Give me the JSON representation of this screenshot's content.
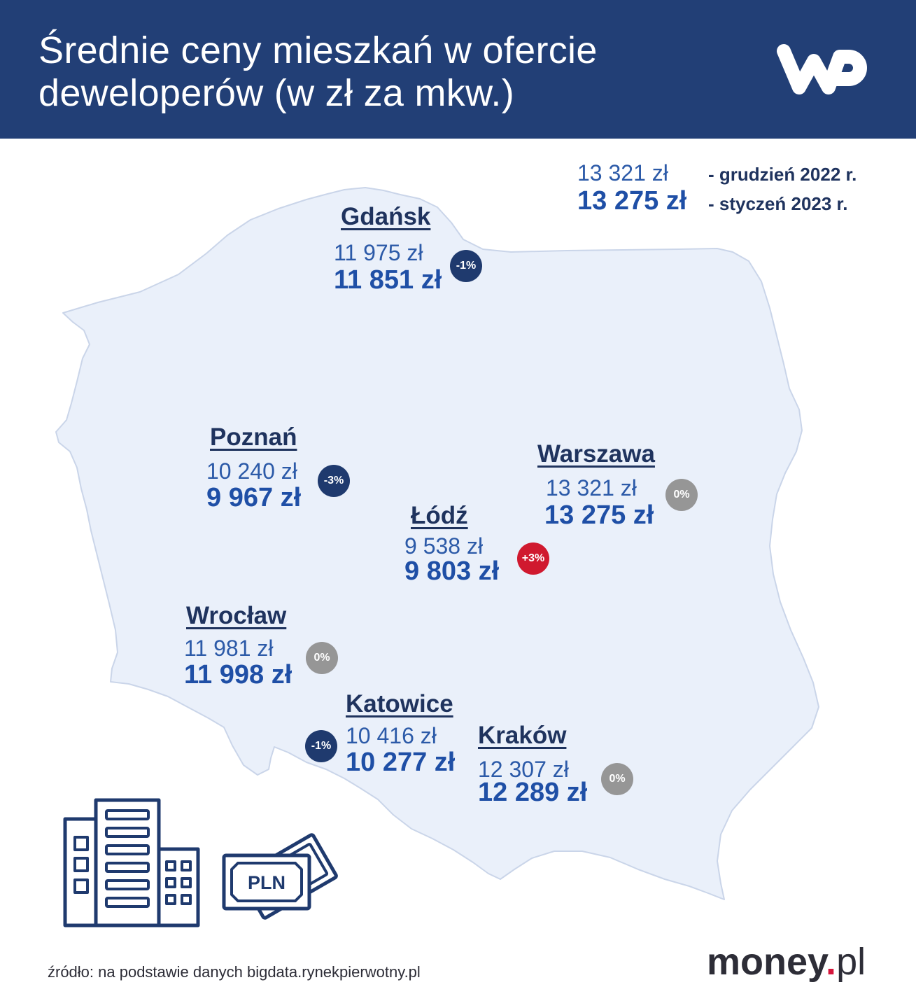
{
  "header": {
    "title_lines": [
      "Średnie ceny mieszkań w ofercie",
      "deweloperów (w zł za mkw.)"
    ],
    "logo": "WP"
  },
  "legend": {
    "previous_value": "13 321 zł",
    "previous_label": "- grudzień 2022 r.",
    "current_value": "13 275 zł",
    "current_label": "- styczeń 2023 r."
  },
  "cities": [
    {
      "name": "Gdańsk",
      "previous": "11 975 zł",
      "current": "11 851 zł",
      "change": "-1%",
      "badge_color": "#1f3a6e"
    },
    {
      "name": "Poznań",
      "previous": "10 240 zł",
      "current": "9 967 zł",
      "change": "-3%",
      "badge_color": "#1f3a6e"
    },
    {
      "name": "Warszawa",
      "previous": "13 321 zł",
      "current": "13 275 zł",
      "change": "0%",
      "badge_color": "#969696"
    },
    {
      "name": "Łódź",
      "previous": "9 538 zł",
      "current": "9 803 zł",
      "change": "+3%",
      "badge_color": "#d0192f"
    },
    {
      "name": "Wrocław",
      "previous": "11 981 zł",
      "current": "11 998 zł",
      "change": "0%",
      "badge_color": "#969696"
    },
    {
      "name": "Katowice",
      "previous": "10 416 zł",
      "current": "10 277 zł",
      "change": "-1%",
      "badge_color": "#1f3a6e"
    },
    {
      "name": "Kraków",
      "previous": "12 307 zł",
      "current": "12 289 zł",
      "change": "0%",
      "badge_color": "#969696"
    }
  ],
  "money_icon": {
    "label": "PLN"
  },
  "footer": {
    "source": "źródło: na podstawie danych bigdata.rynekpierwotny.pl",
    "brand_name": "money",
    "brand_dot": ".",
    "brand_tld": "pl"
  },
  "icons": {
    "header_logo": "wp-logo",
    "map": "poland-map",
    "building": "building-icon",
    "money": "banknotes-icon"
  },
  "colors": {
    "header_background": "#223f76",
    "city_label": "#1f335e",
    "price_previous": "#2c5aa8",
    "price_current": "#1f4fa6",
    "map_fill": "#eaf0fa",
    "map_outline": "#cad5e9",
    "icon_stroke": "#1f3a6e",
    "text_dark": "#2d2d37",
    "brand_dot": "#d6163c"
  }
}
